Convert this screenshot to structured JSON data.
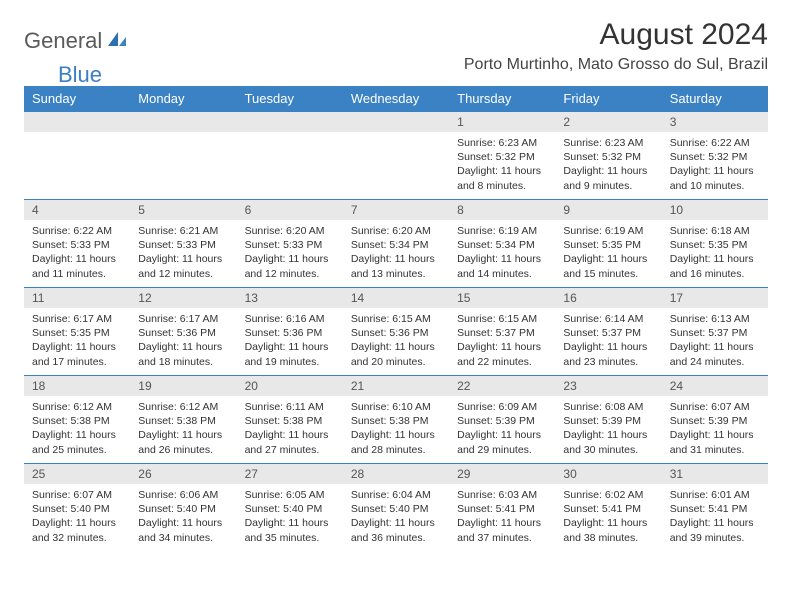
{
  "logo": {
    "general": "General",
    "blue": "Blue"
  },
  "title": "August 2024",
  "location": "Porto Murtinho, Mato Grosso do Sul, Brazil",
  "colors": {
    "header_bg": "#3b82c4",
    "header_text": "#ffffff",
    "daynum_bg": "#e8e8e8",
    "border": "#3b82c4",
    "logo_gray": "#5a5a5a",
    "logo_blue": "#3b7fc4"
  },
  "weekdays": [
    "Sunday",
    "Monday",
    "Tuesday",
    "Wednesday",
    "Thursday",
    "Friday",
    "Saturday"
  ],
  "first_day_index": 4,
  "days_in_month": 31,
  "days": {
    "1": {
      "sunrise": "6:23 AM",
      "sunset": "5:32 PM",
      "daylight": "11 hours and 8 minutes."
    },
    "2": {
      "sunrise": "6:23 AM",
      "sunset": "5:32 PM",
      "daylight": "11 hours and 9 minutes."
    },
    "3": {
      "sunrise": "6:22 AM",
      "sunset": "5:32 PM",
      "daylight": "11 hours and 10 minutes."
    },
    "4": {
      "sunrise": "6:22 AM",
      "sunset": "5:33 PM",
      "daylight": "11 hours and 11 minutes."
    },
    "5": {
      "sunrise": "6:21 AM",
      "sunset": "5:33 PM",
      "daylight": "11 hours and 12 minutes."
    },
    "6": {
      "sunrise": "6:20 AM",
      "sunset": "5:33 PM",
      "daylight": "11 hours and 12 minutes."
    },
    "7": {
      "sunrise": "6:20 AM",
      "sunset": "5:34 PM",
      "daylight": "11 hours and 13 minutes."
    },
    "8": {
      "sunrise": "6:19 AM",
      "sunset": "5:34 PM",
      "daylight": "11 hours and 14 minutes."
    },
    "9": {
      "sunrise": "6:19 AM",
      "sunset": "5:35 PM",
      "daylight": "11 hours and 15 minutes."
    },
    "10": {
      "sunrise": "6:18 AM",
      "sunset": "5:35 PM",
      "daylight": "11 hours and 16 minutes."
    },
    "11": {
      "sunrise": "6:17 AM",
      "sunset": "5:35 PM",
      "daylight": "11 hours and 17 minutes."
    },
    "12": {
      "sunrise": "6:17 AM",
      "sunset": "5:36 PM",
      "daylight": "11 hours and 18 minutes."
    },
    "13": {
      "sunrise": "6:16 AM",
      "sunset": "5:36 PM",
      "daylight": "11 hours and 19 minutes."
    },
    "14": {
      "sunrise": "6:15 AM",
      "sunset": "5:36 PM",
      "daylight": "11 hours and 20 minutes."
    },
    "15": {
      "sunrise": "6:15 AM",
      "sunset": "5:37 PM",
      "daylight": "11 hours and 22 minutes."
    },
    "16": {
      "sunrise": "6:14 AM",
      "sunset": "5:37 PM",
      "daylight": "11 hours and 23 minutes."
    },
    "17": {
      "sunrise": "6:13 AM",
      "sunset": "5:37 PM",
      "daylight": "11 hours and 24 minutes."
    },
    "18": {
      "sunrise": "6:12 AM",
      "sunset": "5:38 PM",
      "daylight": "11 hours and 25 minutes."
    },
    "19": {
      "sunrise": "6:12 AM",
      "sunset": "5:38 PM",
      "daylight": "11 hours and 26 minutes."
    },
    "20": {
      "sunrise": "6:11 AM",
      "sunset": "5:38 PM",
      "daylight": "11 hours and 27 minutes."
    },
    "21": {
      "sunrise": "6:10 AM",
      "sunset": "5:38 PM",
      "daylight": "11 hours and 28 minutes."
    },
    "22": {
      "sunrise": "6:09 AM",
      "sunset": "5:39 PM",
      "daylight": "11 hours and 29 minutes."
    },
    "23": {
      "sunrise": "6:08 AM",
      "sunset": "5:39 PM",
      "daylight": "11 hours and 30 minutes."
    },
    "24": {
      "sunrise": "6:07 AM",
      "sunset": "5:39 PM",
      "daylight": "11 hours and 31 minutes."
    },
    "25": {
      "sunrise": "6:07 AM",
      "sunset": "5:40 PM",
      "daylight": "11 hours and 32 minutes."
    },
    "26": {
      "sunrise": "6:06 AM",
      "sunset": "5:40 PM",
      "daylight": "11 hours and 34 minutes."
    },
    "27": {
      "sunrise": "6:05 AM",
      "sunset": "5:40 PM",
      "daylight": "11 hours and 35 minutes."
    },
    "28": {
      "sunrise": "6:04 AM",
      "sunset": "5:40 PM",
      "daylight": "11 hours and 36 minutes."
    },
    "29": {
      "sunrise": "6:03 AM",
      "sunset": "5:41 PM",
      "daylight": "11 hours and 37 minutes."
    },
    "30": {
      "sunrise": "6:02 AM",
      "sunset": "5:41 PM",
      "daylight": "11 hours and 38 minutes."
    },
    "31": {
      "sunrise": "6:01 AM",
      "sunset": "5:41 PM",
      "daylight": "11 hours and 39 minutes."
    }
  },
  "labels": {
    "sunrise": "Sunrise:",
    "sunset": "Sunset:",
    "daylight": "Daylight:"
  }
}
